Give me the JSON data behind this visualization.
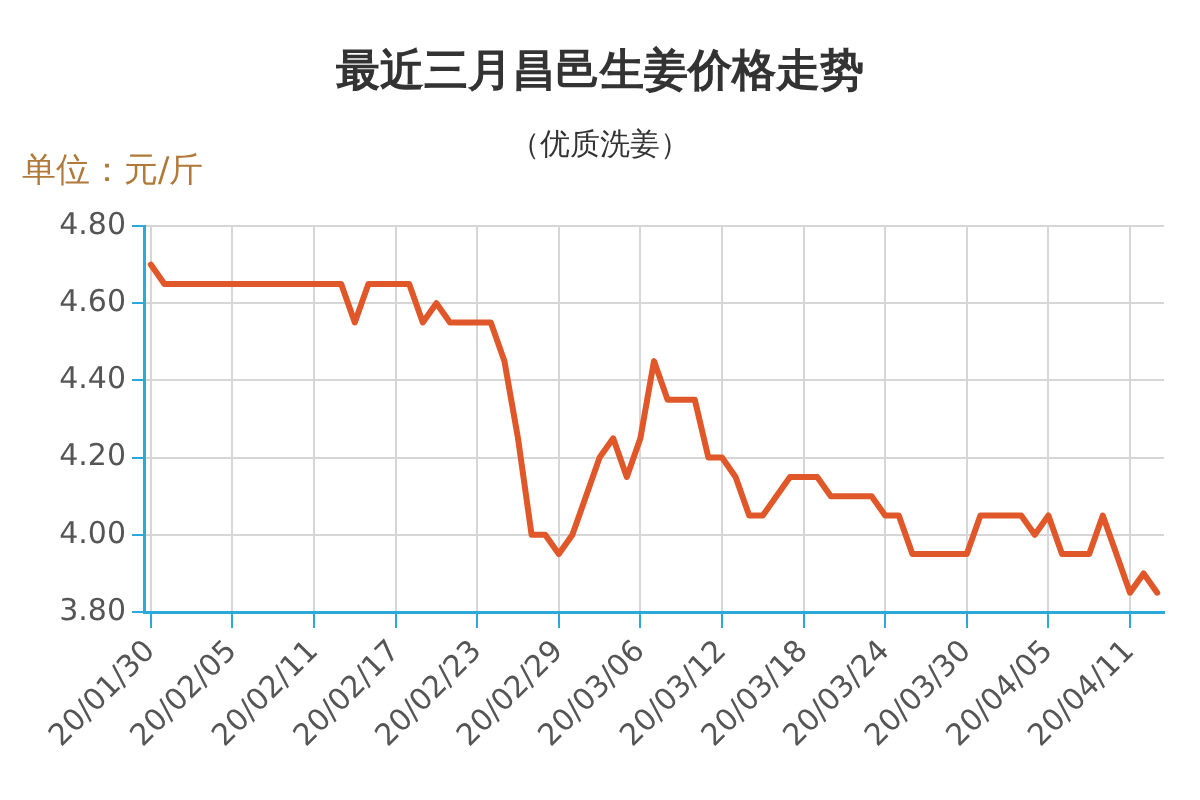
{
  "chart_data": {
    "type": "line",
    "title": "最近三月昌邑生姜价格走势",
    "subtitle": "（优质洗姜）",
    "ylabel": "单位：元/斤",
    "categories": [
      "20/01/30",
      null,
      null,
      null,
      null,
      null,
      "20/02/05",
      null,
      null,
      null,
      null,
      null,
      "20/02/11",
      null,
      null,
      null,
      null,
      null,
      "20/02/17",
      null,
      null,
      null,
      null,
      null,
      "20/02/23",
      null,
      null,
      null,
      null,
      null,
      "20/02/29",
      null,
      null,
      null,
      null,
      null,
      "20/03/06",
      null,
      null,
      null,
      null,
      null,
      "20/03/12",
      null,
      null,
      null,
      null,
      null,
      "20/03/18",
      null,
      null,
      null,
      null,
      null,
      "20/03/24",
      null,
      null,
      null,
      null,
      null,
      "20/03/30",
      null,
      null,
      null,
      null,
      null,
      "20/04/05",
      null,
      null,
      null,
      null,
      null,
      "20/04/11",
      null,
      null
    ],
    "values": [
      4.7,
      4.65,
      4.65,
      4.65,
      4.65,
      4.65,
      4.65,
      4.65,
      4.65,
      4.65,
      4.65,
      4.65,
      4.65,
      4.65,
      4.65,
      4.55,
      4.65,
      4.65,
      4.65,
      4.65,
      4.55,
      4.6,
      4.55,
      4.55,
      4.55,
      4.55,
      4.45,
      4.25,
      4.0,
      4.0,
      3.95,
      4.0,
      4.1,
      4.2,
      4.25,
      4.15,
      4.25,
      4.45,
      4.35,
      4.35,
      4.35,
      4.2,
      4.2,
      4.15,
      4.05,
      4.05,
      4.1,
      4.15,
      4.15,
      4.15,
      4.1,
      4.1,
      4.1,
      4.1,
      4.05,
      4.05,
      3.95,
      3.95,
      3.95,
      3.95,
      3.95,
      4.05,
      4.05,
      4.05,
      4.05,
      4.0,
      4.05,
      3.95,
      3.95,
      3.95,
      4.05,
      3.95,
      3.85,
      3.9,
      3.85
    ],
    "color": "#e0582a",
    "ylim": [
      3.8,
      4.8
    ],
    "yticks": [
      {
        "value": 3.8,
        "label": "3.80"
      },
      {
        "value": 4.0,
        "label": "4.00"
      },
      {
        "value": 4.2,
        "label": "4.20"
      },
      {
        "value": 4.4,
        "label": "4.40"
      },
      {
        "value": 4.6,
        "label": "4.60"
      },
      {
        "value": 4.8,
        "label": "4.80"
      }
    ],
    "grid": true
  }
}
